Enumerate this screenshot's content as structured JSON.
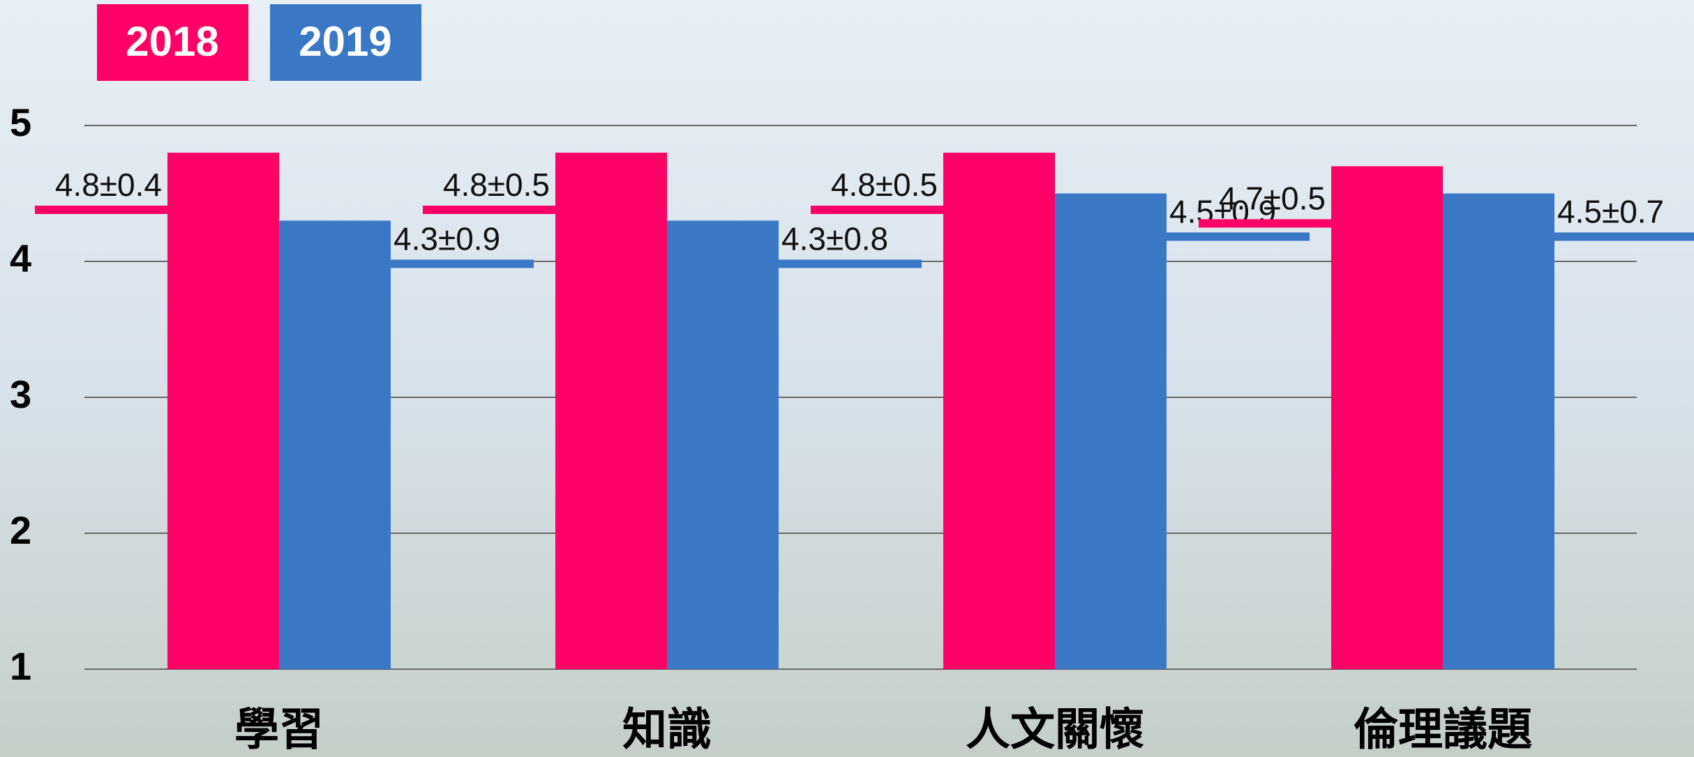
{
  "chart_data": {
    "type": "bar",
    "categories": [
      "學習",
      "知識",
      "人文關懷",
      "倫理議題"
    ],
    "series": [
      {
        "name": "2018",
        "color": "#ff0066",
        "values": [
          4.8,
          4.8,
          4.8,
          4.7
        ],
        "value_labels": [
          "4.8±0.4",
          "4.8±0.5",
          "4.8±0.5",
          "4.7±0.5"
        ]
      },
      {
        "name": "2019",
        "color": "#3a78c6",
        "values": [
          4.3,
          4.3,
          4.5,
          4.5
        ],
        "value_labels": [
          "4.3±0.9",
          "4.3±0.8",
          "4.5±0.9",
          "4.5±0.7"
        ]
      }
    ],
    "ylim": [
      1,
      5
    ],
    "yticks": [
      1,
      2,
      3,
      4,
      5
    ],
    "grid": true
  }
}
